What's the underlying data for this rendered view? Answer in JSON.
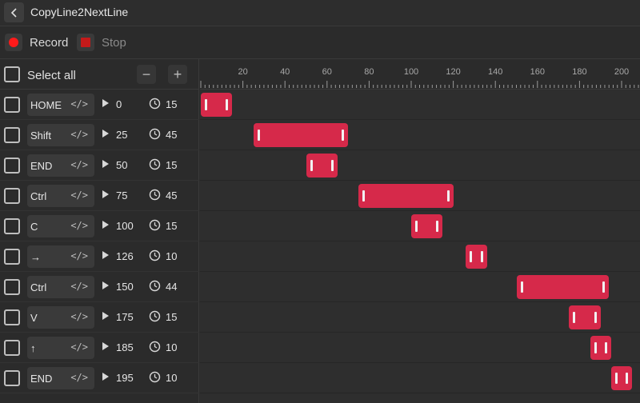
{
  "window": {
    "title": "CopyLine2NextLine",
    "back_icon": "chevron-left-icon"
  },
  "toolbar": {
    "record_label": "Record",
    "stop_label": "Stop",
    "record_color": "#ff1a1a",
    "stop_color": "#c41a1a"
  },
  "list_header": {
    "select_all_label": "Select all",
    "minus_label": "−",
    "plus_label": "+"
  },
  "timeline": {
    "ruler_ticks": [
      "20",
      "40",
      "60",
      "80",
      "100",
      "120",
      "140",
      "160",
      "180",
      "200"
    ],
    "bar_color": "#d6294a",
    "range_max": 208
  },
  "rows": [
    {
      "key": "HOME",
      "start": "0",
      "duration": "15"
    },
    {
      "key": "Shift",
      "start": "25",
      "duration": "45"
    },
    {
      "key": "END",
      "start": "50",
      "duration": "15"
    },
    {
      "key": "Ctrl",
      "start": "75",
      "duration": "45"
    },
    {
      "key": "C",
      "start": "100",
      "duration": "15"
    },
    {
      "key": "→",
      "start": "126",
      "duration": "10"
    },
    {
      "key": "Ctrl",
      "start": "150",
      "duration": "44"
    },
    {
      "key": "V",
      "start": "175",
      "duration": "15"
    },
    {
      "key": "↑",
      "start": "185",
      "duration": "10"
    },
    {
      "key": "END",
      "start": "195",
      "duration": "10"
    }
  ]
}
